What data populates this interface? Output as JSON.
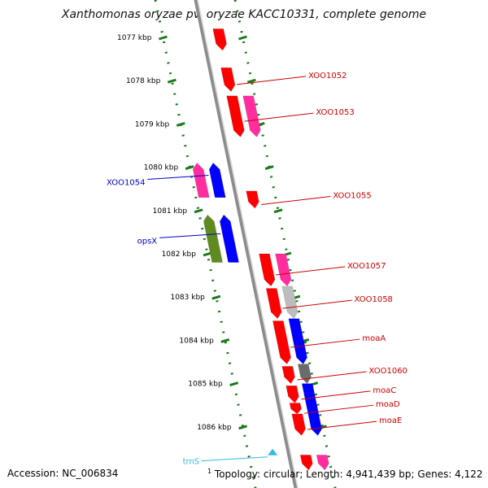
{
  "title": "Xanthomonas oryzae pv. oryzae KACC10331, complete genome",
  "footer": {
    "accession": "Accession: NC_006834",
    "topology_mark": "1",
    "topology": "Topology: circular; Length: 4,941,439 bp; Genes: 4,122"
  },
  "colors": {
    "red": "#ff0000",
    "magenta": "#ff2d9e",
    "blue": "#0000ff",
    "olive": "#5e8a1f",
    "gray": "#bdbdbd",
    "dark_gray": "#6b6b6b",
    "scale_green": "#1a7a1a",
    "label_red": "#cc0000",
    "label_blue": "#0000cc",
    "label_cyan": "#33bbdd"
  },
  "scale": {
    "unit": "kbp",
    "ticks": [
      {
        "kbp": 1077,
        "label": "1077 kbp"
      },
      {
        "kbp": 1078,
        "label": "1078 kbp"
      },
      {
        "kbp": 1079,
        "label": "1079 kbp"
      },
      {
        "kbp": 1080,
        "label": "1080 kbp"
      },
      {
        "kbp": 1081,
        "label": "1081 kbp"
      },
      {
        "kbp": 1082,
        "label": "1082 kbp"
      },
      {
        "kbp": 1083,
        "label": "1083 kbp"
      },
      {
        "kbp": 1084,
        "label": "1084 kbp"
      },
      {
        "kbp": 1085,
        "label": "1085 kbp"
      },
      {
        "kbp": 1086,
        "label": "1086 kbp"
      }
    ]
  },
  "genes": [
    {
      "id": "g1",
      "label": "",
      "strand": "forward",
      "lane": 1,
      "start_kbp": 1076.8,
      "end_kbp": 1077.3,
      "color": "red"
    },
    {
      "id": "g2",
      "label": "XOO1052",
      "strand": "forward",
      "lane": 1,
      "start_kbp": 1077.7,
      "end_kbp": 1078.25,
      "color": "red"
    },
    {
      "id": "g3",
      "label": "XOO1053",
      "strand": "forward",
      "lane": 1,
      "start_kbp": 1078.35,
      "end_kbp": 1079.3,
      "color": "red"
    },
    {
      "id": "g4",
      "label": "",
      "strand": "forward",
      "lane": 2,
      "start_kbp": 1078.35,
      "end_kbp": 1079.3,
      "color": "magenta"
    },
    {
      "id": "g5",
      "label": "",
      "strand": "reverse",
      "lane": 2,
      "start_kbp": 1079.9,
      "end_kbp": 1080.7,
      "color": "magenta"
    },
    {
      "id": "g6",
      "label": "XOO1054",
      "strand": "reverse",
      "lane": 1,
      "start_kbp": 1079.9,
      "end_kbp": 1080.7,
      "color": "blue"
    },
    {
      "id": "g7",
      "label": "XOO1055",
      "strand": "forward",
      "lane": 1,
      "start_kbp": 1080.55,
      "end_kbp": 1080.95,
      "color": "red"
    },
    {
      "id": "g8",
      "label": "",
      "strand": "reverse",
      "lane": 2,
      "start_kbp": 1081.1,
      "end_kbp": 1082.2,
      "color": "olive"
    },
    {
      "id": "g9",
      "label": "opsX",
      "strand": "reverse",
      "lane": 1,
      "start_kbp": 1081.1,
      "end_kbp": 1082.2,
      "color": "blue"
    },
    {
      "id": "g10",
      "label": "XOO1057",
      "strand": "forward",
      "lane": 1,
      "start_kbp": 1082.0,
      "end_kbp": 1082.75,
      "color": "red"
    },
    {
      "id": "g11",
      "label": "",
      "strand": "forward",
      "lane": 2,
      "start_kbp": 1082.0,
      "end_kbp": 1082.75,
      "color": "magenta"
    },
    {
      "id": "g12",
      "label": "XOO1058",
      "strand": "forward",
      "lane": 1,
      "start_kbp": 1082.8,
      "end_kbp": 1083.5,
      "color": "red"
    },
    {
      "id": "g13",
      "label": "",
      "strand": "forward",
      "lane": 2,
      "start_kbp": 1082.75,
      "end_kbp": 1083.5,
      "color": "gray"
    },
    {
      "id": "g14",
      "label": "moaA",
      "strand": "forward",
      "lane": 1,
      "start_kbp": 1083.55,
      "end_kbp": 1084.55,
      "color": "red"
    },
    {
      "id": "g15",
      "label": "",
      "strand": "forward",
      "lane": 2,
      "start_kbp": 1083.5,
      "end_kbp": 1084.55,
      "color": "blue"
    },
    {
      "id": "g16",
      "label": "XOO1060",
      "strand": "forward",
      "lane": 1,
      "start_kbp": 1084.6,
      "end_kbp": 1085.0,
      "color": "red"
    },
    {
      "id": "g17",
      "label": "",
      "strand": "forward",
      "lane": 2,
      "start_kbp": 1084.55,
      "end_kbp": 1085.0,
      "color": "dark_gray"
    },
    {
      "id": "g18",
      "label": "moaC",
      "strand": "forward",
      "lane": 1,
      "start_kbp": 1085.05,
      "end_kbp": 1085.45,
      "color": "red"
    },
    {
      "id": "g19",
      "label": "moaD",
      "strand": "forward",
      "lane": 1,
      "start_kbp": 1085.45,
      "end_kbp": 1085.7,
      "color": "red"
    },
    {
      "id": "g20",
      "label": "moaE",
      "strand": "forward",
      "lane": 1,
      "start_kbp": 1085.7,
      "end_kbp": 1086.2,
      "color": "red"
    },
    {
      "id": "g21",
      "label": "",
      "strand": "forward",
      "lane": 2,
      "start_kbp": 1085.0,
      "end_kbp": 1086.2,
      "color": "blue"
    },
    {
      "id": "g22",
      "label": "",
      "strand": "forward",
      "lane": 1,
      "start_kbp": 1086.65,
      "end_kbp": 1087.0,
      "color": "red"
    },
    {
      "id": "g23",
      "label": "",
      "strand": "forward",
      "lane": 2,
      "start_kbp": 1086.65,
      "end_kbp": 1087.0,
      "color": "magenta"
    }
  ],
  "features": [
    {
      "id": "trnS",
      "label": "trnS",
      "strand": "reverse",
      "kbp": 1086.6,
      "type": "tRNA",
      "color": "label_cyan"
    }
  ]
}
